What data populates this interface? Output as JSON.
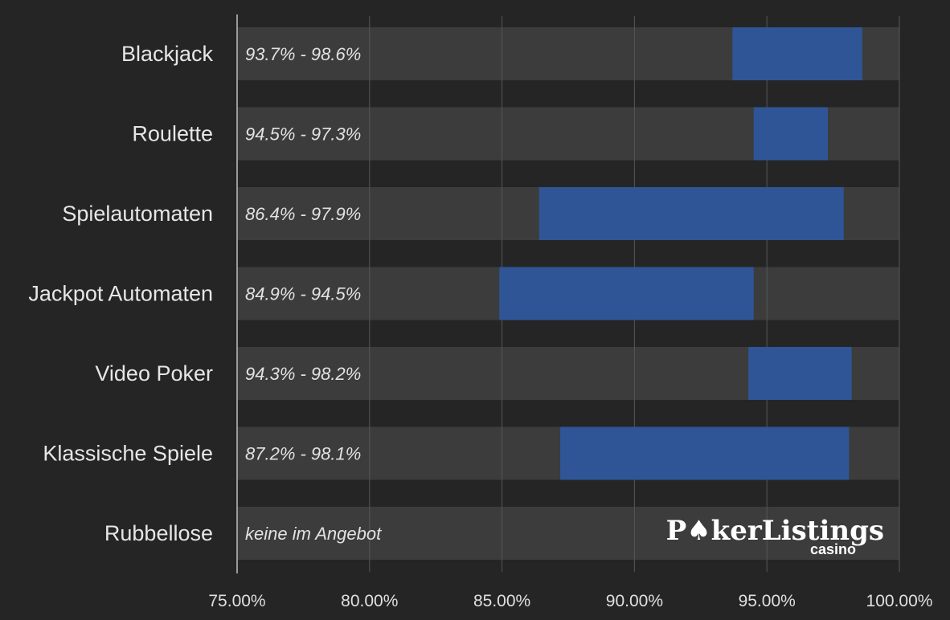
{
  "chart_data": {
    "type": "bar",
    "orientation": "horizontal",
    "categories": [
      "Blackjack",
      "Roulette",
      "Spielautomaten",
      "Jackpot Automaten",
      "Video Poker",
      "Klassische Spiele",
      "Rubbellose"
    ],
    "ranges": [
      [
        93.7,
        98.6
      ],
      [
        94.5,
        97.3
      ],
      [
        86.4,
        97.9
      ],
      [
        84.9,
        94.5
      ],
      [
        94.3,
        98.2
      ],
      [
        87.2,
        98.1
      ],
      null
    ],
    "range_labels": [
      "93.7% - 98.6%",
      "94.5% - 97.3%",
      "86.4% - 97.9%",
      "84.9% - 94.5%",
      "94.3% - 98.2%",
      "87.2% - 98.1%",
      "keine im Angebot"
    ],
    "xlim": [
      75,
      100
    ],
    "xticks": [
      75,
      80,
      85,
      90,
      95,
      100
    ],
    "xtick_labels": [
      "75.00%",
      "80.00%",
      "85.00%",
      "90.00%",
      "95.00%",
      "100.00%"
    ],
    "title": "",
    "xlabel": "",
    "ylabel": "",
    "grid": "vertical",
    "legend": "none"
  },
  "logo": {
    "main": "P♠kerListings",
    "sub": "casino"
  },
  "colors": {
    "background": "#252525",
    "band": "#3c3c3c",
    "bar": "#2f5597",
    "gridline": "#565656",
    "axis": "#9a9a9a"
  }
}
